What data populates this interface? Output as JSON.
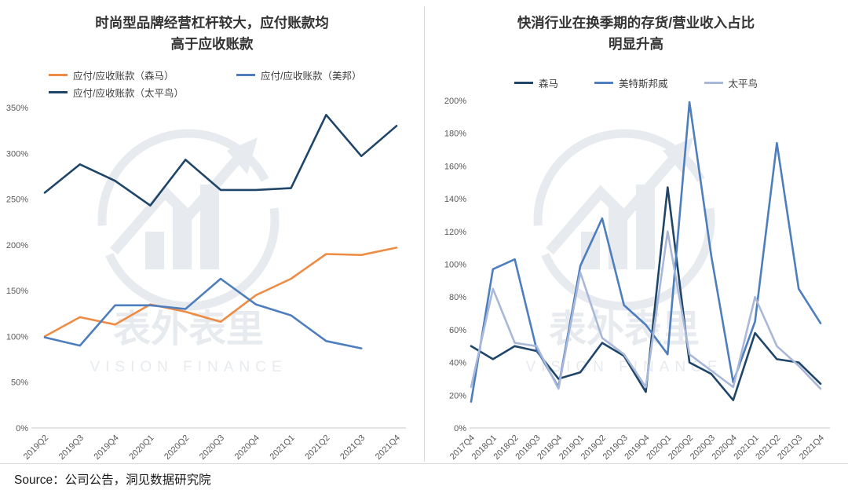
{
  "page": {
    "source": "Source：公司公告，洞见数据研究院",
    "watermark": {
      "line1": "表外表里",
      "line2": "VISION FINANCE",
      "color": "#cbd2da"
    },
    "divider_color": "#d9d9d9"
  },
  "chart_data": [
    {
      "type": "line",
      "title_lines": [
        "时尚型品牌经营杠杆较大，应付账款均",
        "高于应收账款"
      ],
      "categories": [
        "2019Q2",
        "2019Q3",
        "2019Q4",
        "2020Q1",
        "2020Q2",
        "2020Q3",
        "2020Q4",
        "2021Q1",
        "2021Q2",
        "2021Q3",
        "2021Q4"
      ],
      "xlabel": "",
      "ylabel": "",
      "ylim": [
        0,
        350
      ],
      "ytick_step": 50,
      "grid": false,
      "legend_position": "top",
      "legend_rows": [
        [
          0,
          1
        ],
        [
          2
        ]
      ],
      "series": [
        {
          "name": "应付/应收账款（森马）",
          "color": "#EE8C45",
          "values": [
            100,
            121,
            113,
            135,
            127,
            116,
            145,
            163,
            190,
            189,
            197
          ]
        },
        {
          "name": "应付/应收账款（美邦）",
          "color": "#4E7EBD",
          "values": [
            99,
            90,
            134,
            134,
            130,
            163,
            135,
            123,
            95,
            87,
            null
          ]
        },
        {
          "name": "应付/应收账款（太平鸟）",
          "color": "#1F4568",
          "values": [
            257,
            288,
            270,
            243,
            293,
            260,
            260,
            262,
            342,
            297,
            330
          ]
        }
      ]
    },
    {
      "type": "line",
      "title_lines": [
        "快消行业在换季期的存货/营业收入占比",
        "明显升高"
      ],
      "categories": [
        "2017Q4",
        "2018Q1",
        "2018Q2",
        "2018Q3",
        "2018Q4",
        "2019Q1",
        "2019Q2",
        "2019Q3",
        "2019Q4",
        "2020Q1",
        "2020Q2",
        "2020Q3",
        "2020Q4",
        "2021Q1",
        "2021Q2",
        "2021Q3",
        "2021Q4"
      ],
      "xlabel": "",
      "ylabel": "",
      "ylim": [
        0,
        200
      ],
      "ytick_step": 20,
      "grid": false,
      "legend_position": "top",
      "legend_rows": [
        [
          0,
          1,
          2
        ]
      ],
      "series": [
        {
          "name": "森马",
          "color": "#1F4568",
          "values": [
            50,
            42,
            50,
            47,
            30,
            34,
            52,
            44,
            22,
            147,
            40,
            33,
            17,
            58,
            42,
            40,
            27
          ]
        },
        {
          "name": "美特斯邦威",
          "color": "#4E7EBD",
          "values": [
            16,
            97,
            103,
            48,
            25,
            99,
            128,
            75,
            63,
            45,
            199,
            105,
            28,
            65,
            174,
            85,
            64
          ]
        },
        {
          "name": "太平鸟",
          "color": "#A9B8D8",
          "values": [
            25,
            85,
            52,
            50,
            24,
            95,
            55,
            45,
            25,
            120,
            45,
            35,
            25,
            80,
            50,
            38,
            24
          ]
        }
      ]
    }
  ]
}
